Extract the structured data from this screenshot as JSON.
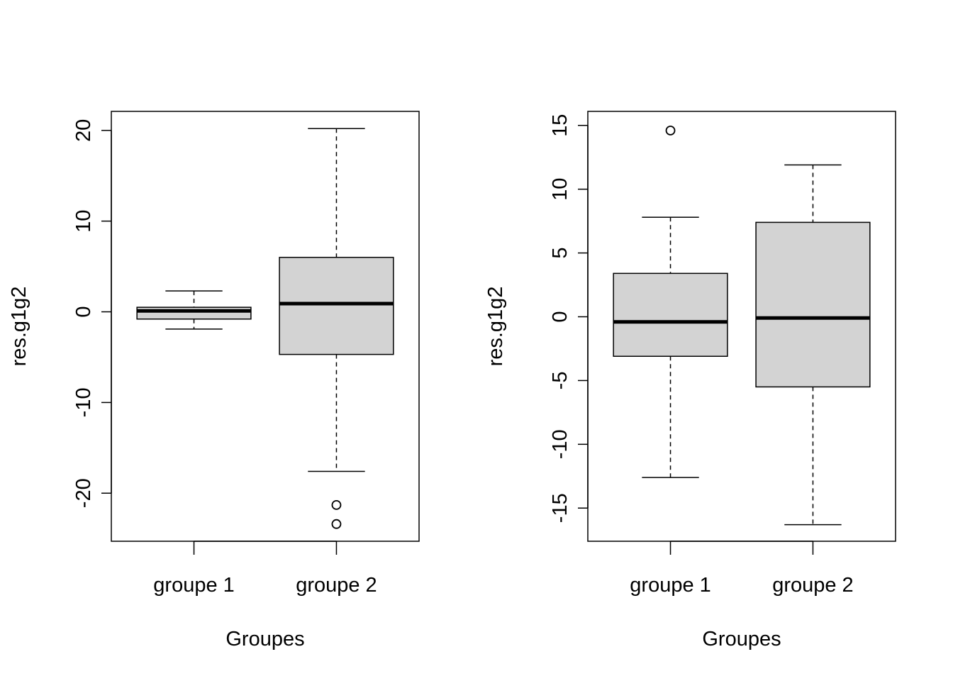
{
  "chart_data": [
    {
      "type": "box",
      "xlabel": "Groupes",
      "ylabel": "res.g1g2",
      "ylim": [
        -25.3,
        22.1
      ],
      "yticks": [
        -20,
        -10,
        0,
        10,
        20
      ],
      "categories": [
        "groupe 1",
        "groupe 2"
      ],
      "boxes": [
        {
          "category": "groupe 1",
          "whisker_low": -1.9,
          "q1": -0.8,
          "median": 0.1,
          "q3": 0.5,
          "whisker_high": 2.3,
          "outliers": []
        },
        {
          "category": "groupe 2",
          "whisker_low": -17.6,
          "q1": -4.7,
          "median": 0.9,
          "q3": 6.0,
          "whisker_high": 20.2,
          "outliers": [
            -21.3,
            -23.4
          ]
        }
      ],
      "box_fill": "#d3d3d3"
    },
    {
      "type": "box",
      "xlabel": "Groupes",
      "ylabel": "res.g1g2",
      "ylim": [
        -17.6,
        16.1
      ],
      "yticks": [
        -15,
        -10,
        -5,
        0,
        5,
        10,
        15
      ],
      "categories": [
        "groupe 1",
        "groupe 2"
      ],
      "boxes": [
        {
          "category": "groupe 1",
          "whisker_low": -12.6,
          "q1": -3.1,
          "median": -0.4,
          "q3": 3.4,
          "whisker_high": 7.8,
          "outliers": [
            14.6
          ]
        },
        {
          "category": "groupe 2",
          "whisker_low": -16.3,
          "q1": -5.5,
          "median": -0.1,
          "q3": 7.4,
          "whisker_high": 11.9,
          "outliers": []
        }
      ],
      "box_fill": "#d3d3d3"
    }
  ]
}
